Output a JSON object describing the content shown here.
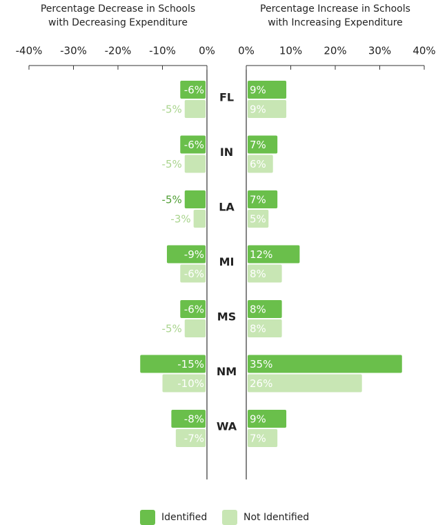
{
  "chart_data": {
    "type": "bar",
    "categories": [
      "FL",
      "IN",
      "LA",
      "MI",
      "MS",
      "NM",
      "WA"
    ],
    "legend": [
      {
        "name": "Identified",
        "color": "#6abf4b"
      },
      {
        "name": "Not Identified",
        "color": "#c8e6b4"
      }
    ],
    "panels": [
      {
        "title": [
          "Percentage Decrease in Schools",
          "with Decreasing Expenditure"
        ],
        "xlim": [
          -40,
          0
        ],
        "xticks": [
          {
            "value": -40,
            "label": "-40%"
          },
          {
            "value": -30,
            "label": "-30%"
          },
          {
            "value": -20,
            "label": "-20%"
          },
          {
            "value": -10,
            "label": "-10%"
          },
          {
            "value": 0,
            "label": "0%"
          }
        ],
        "series": [
          {
            "color": "#6abf4b",
            "values": [
              -6,
              -6,
              -5,
              -9,
              -6,
              -15,
              -8
            ],
            "value_labels": [
              "-6%",
              "-6%",
              "-5%",
              "-9%",
              "-6%",
              "-15%",
              "-8%"
            ]
          },
          {
            "color": "#c8e6b4",
            "values": [
              -5,
              -5,
              -3,
              -6,
              -5,
              -10,
              -7
            ],
            "value_labels": [
              "-5%",
              "-5%",
              "-3%",
              "-6%",
              "-5%",
              "-10%",
              "-7%"
            ]
          }
        ]
      },
      {
        "title": [
          "Percentage Increase in Schools",
          "with Increasing Expenditure"
        ],
        "xlim": [
          0,
          40
        ],
        "xticks": [
          {
            "value": 0,
            "label": "0%"
          },
          {
            "value": 10,
            "label": "10%"
          },
          {
            "value": 20,
            "label": "20%"
          },
          {
            "value": 30,
            "label": "30%"
          },
          {
            "value": 40,
            "label": "40%"
          }
        ],
        "series": [
          {
            "color": "#6abf4b",
            "values": [
              9,
              7,
              7,
              12,
              8,
              35,
              9
            ],
            "value_labels": [
              "9%",
              "7%",
              "7%",
              "12%",
              "8%",
              "35%",
              "9%"
            ]
          },
          {
            "color": "#c8e6b4",
            "values": [
              9,
              6,
              5,
              8,
              8,
              26,
              7
            ],
            "value_labels": [
              "9%",
              "6%",
              "5%",
              "8%",
              "8%",
              "26%",
              "7%"
            ]
          }
        ]
      }
    ]
  }
}
